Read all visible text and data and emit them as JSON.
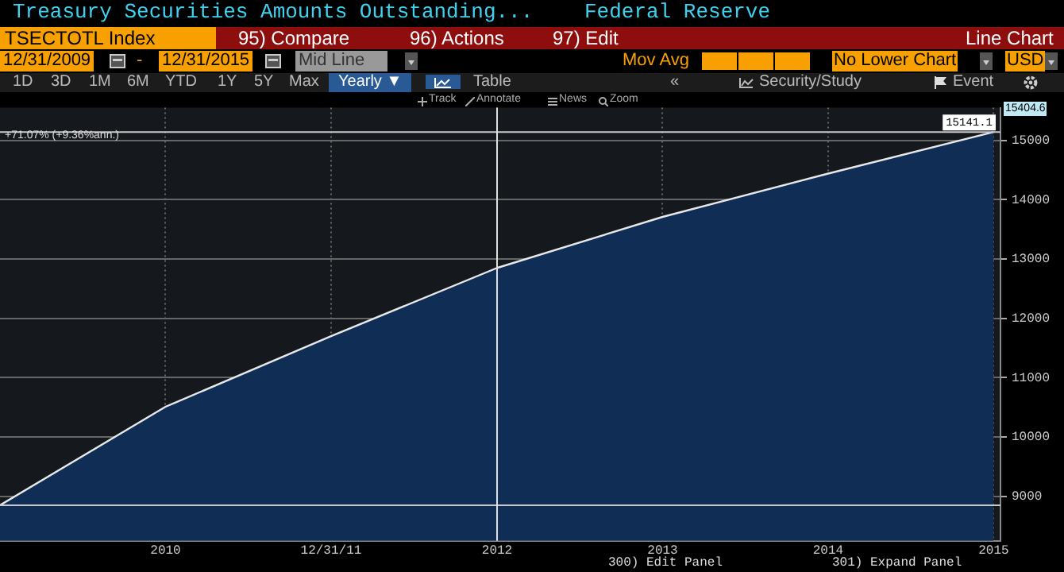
{
  "chart_data": {
    "type": "area",
    "title": "Treasury Securities Amounts Outstanding...",
    "subtitle": "Federal Reserve",
    "x": [
      "2009-12-31",
      "2010-12-31",
      "2011-12-31",
      "2012-12-31",
      "2013-12-31",
      "2014-12-31",
      "2015-12-31"
    ],
    "series": [
      {
        "color": "#0f2d55",
        "values": [
          8850,
          10510,
          11700,
          12850,
          13710,
          14440,
          15141.1
        ]
      }
    ],
    "xlim": [
      "2009-12-31",
      "2016-01-15"
    ],
    "xticks": [
      {
        "value": "2010-12-31",
        "label": "2010"
      },
      {
        "value": "2011-12-31",
        "label": "12/31/11"
      },
      {
        "value": "2012-12-31",
        "label": "2012"
      },
      {
        "value": "2013-12-31",
        "label": "2013"
      },
      {
        "value": "2014-12-31",
        "label": "2014"
      },
      {
        "value": "2015-12-31",
        "label": "2015"
      }
    ],
    "ylim": [
      8250,
      15550
    ],
    "yticks": [
      9000,
      10000,
      11000,
      12000,
      13000,
      14000,
      15000
    ],
    "grid": true,
    "legend": false,
    "marker": "none",
    "line_style": "solid",
    "ref_lines": [
      {
        "axis": "y",
        "value": 15141.1,
        "label": "15141.1",
        "color": "#c8c8c8"
      },
      {
        "axis": "y",
        "value": 8850,
        "color": "#c8c8c8"
      },
      {
        "axis": "x",
        "value": "2012-12-31",
        "color": "#e0e0e0"
      }
    ],
    "annotations": [
      "TSECTOTL Index",
      "95) Compare",
      "96) Actions",
      "97) Edit",
      "Line Chart",
      "12/31/2009",
      "-",
      "12/31/2015",
      "Mid Line",
      "Mov Avg",
      "No Lower Chart",
      "USD",
      "1D",
      "3D",
      "1M",
      "6M",
      "YTD",
      "1Y",
      "5Y",
      "Max",
      "Yearly ▼",
      "Table",
      "«",
      "Security/Study",
      "Event",
      "Track",
      "Annotate",
      "News",
      "Zoom",
      "+71.07% (+9.36%ann.)",
      "15404.6",
      "300) Edit Panel",
      "301) Expand Panel"
    ]
  }
}
